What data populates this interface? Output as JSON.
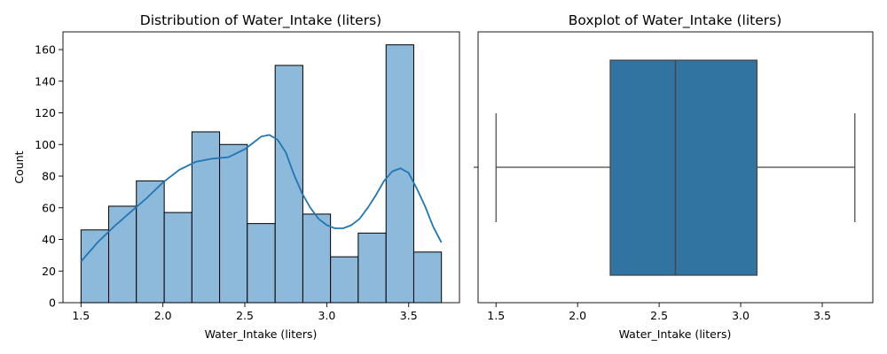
{
  "chart_data": [
    {
      "type": "histogram",
      "title": "Distribution of Water_Intake (liters)",
      "xlabel": "Water_Intake (liters)",
      "ylabel": "Count",
      "xlim": [
        1.39,
        3.81
      ],
      "ylim": [
        0,
        171.2
      ],
      "xticks": [
        1.5,
        2.0,
        2.5,
        3.0,
        3.5
      ],
      "xtick_labels": [
        "1.5",
        "2.0",
        "2.5",
        "3.0",
        "3.5"
      ],
      "yticks": [
        0,
        20,
        40,
        60,
        80,
        100,
        120,
        140,
        160
      ],
      "ytick_labels": [
        "0",
        "20",
        "40",
        "60",
        "80",
        "100",
        "120",
        "140",
        "160"
      ],
      "bins": [
        {
          "x0": 1.5,
          "x1": 1.669,
          "count": 46
        },
        {
          "x0": 1.669,
          "x1": 1.838,
          "count": 61
        },
        {
          "x0": 1.838,
          "x1": 2.008,
          "count": 77
        },
        {
          "x0": 2.008,
          "x1": 2.177,
          "count": 57
        },
        {
          "x0": 2.177,
          "x1": 2.346,
          "count": 108
        },
        {
          "x0": 2.346,
          "x1": 2.515,
          "count": 100
        },
        {
          "x0": 2.515,
          "x1": 2.685,
          "count": 50
        },
        {
          "x0": 2.685,
          "x1": 2.854,
          "count": 150
        },
        {
          "x0": 2.854,
          "x1": 3.023,
          "count": 56
        },
        {
          "x0": 3.023,
          "x1": 3.192,
          "count": 29
        },
        {
          "x0": 3.192,
          "x1": 3.362,
          "count": 44
        },
        {
          "x0": 3.362,
          "x1": 3.531,
          "count": 163
        },
        {
          "x0": 3.531,
          "x1": 3.7,
          "count": 32
        }
      ],
      "kde": {
        "x": [
          1.5,
          1.6,
          1.7,
          1.8,
          1.9,
          2.0,
          2.1,
          2.2,
          2.3,
          2.4,
          2.5,
          2.55,
          2.6,
          2.65,
          2.7,
          2.75,
          2.8,
          2.85,
          2.9,
          2.95,
          3.0,
          3.05,
          3.1,
          3.15,
          3.2,
          3.25,
          3.3,
          3.35,
          3.4,
          3.45,
          3.5,
          3.55,
          3.6,
          3.65,
          3.7
        ],
        "y": [
          26,
          38,
          48,
          57,
          66,
          76,
          84,
          89,
          91,
          92,
          97,
          101,
          105,
          106,
          103,
          95,
          81,
          69,
          60,
          53,
          49,
          47,
          47,
          49,
          53,
          60,
          68,
          77,
          83,
          85,
          82,
          72,
          61,
          48,
          38
        ]
      },
      "colors": {
        "bar_fill": "#8db9db",
        "bar_edge": "#000000",
        "kde": "#1f77b4"
      },
      "grid": false
    },
    {
      "type": "boxplot",
      "title": "Boxplot of Water_Intake (liters)",
      "xlabel": "Water_Intake (liters)",
      "xlim": [
        1.39,
        3.81
      ],
      "xticks": [
        1.5,
        2.0,
        2.5,
        3.0,
        3.5
      ],
      "xtick_labels": [
        "1.5",
        "2.0",
        "2.5",
        "3.0",
        "3.5"
      ],
      "stats": {
        "whisker_low": 1.5,
        "q1": 2.2,
        "median": 2.6,
        "q3": 3.1,
        "whisker_high": 3.7
      },
      "colors": {
        "box_fill": "#3274a1",
        "line": "#444444"
      },
      "grid": false
    }
  ]
}
